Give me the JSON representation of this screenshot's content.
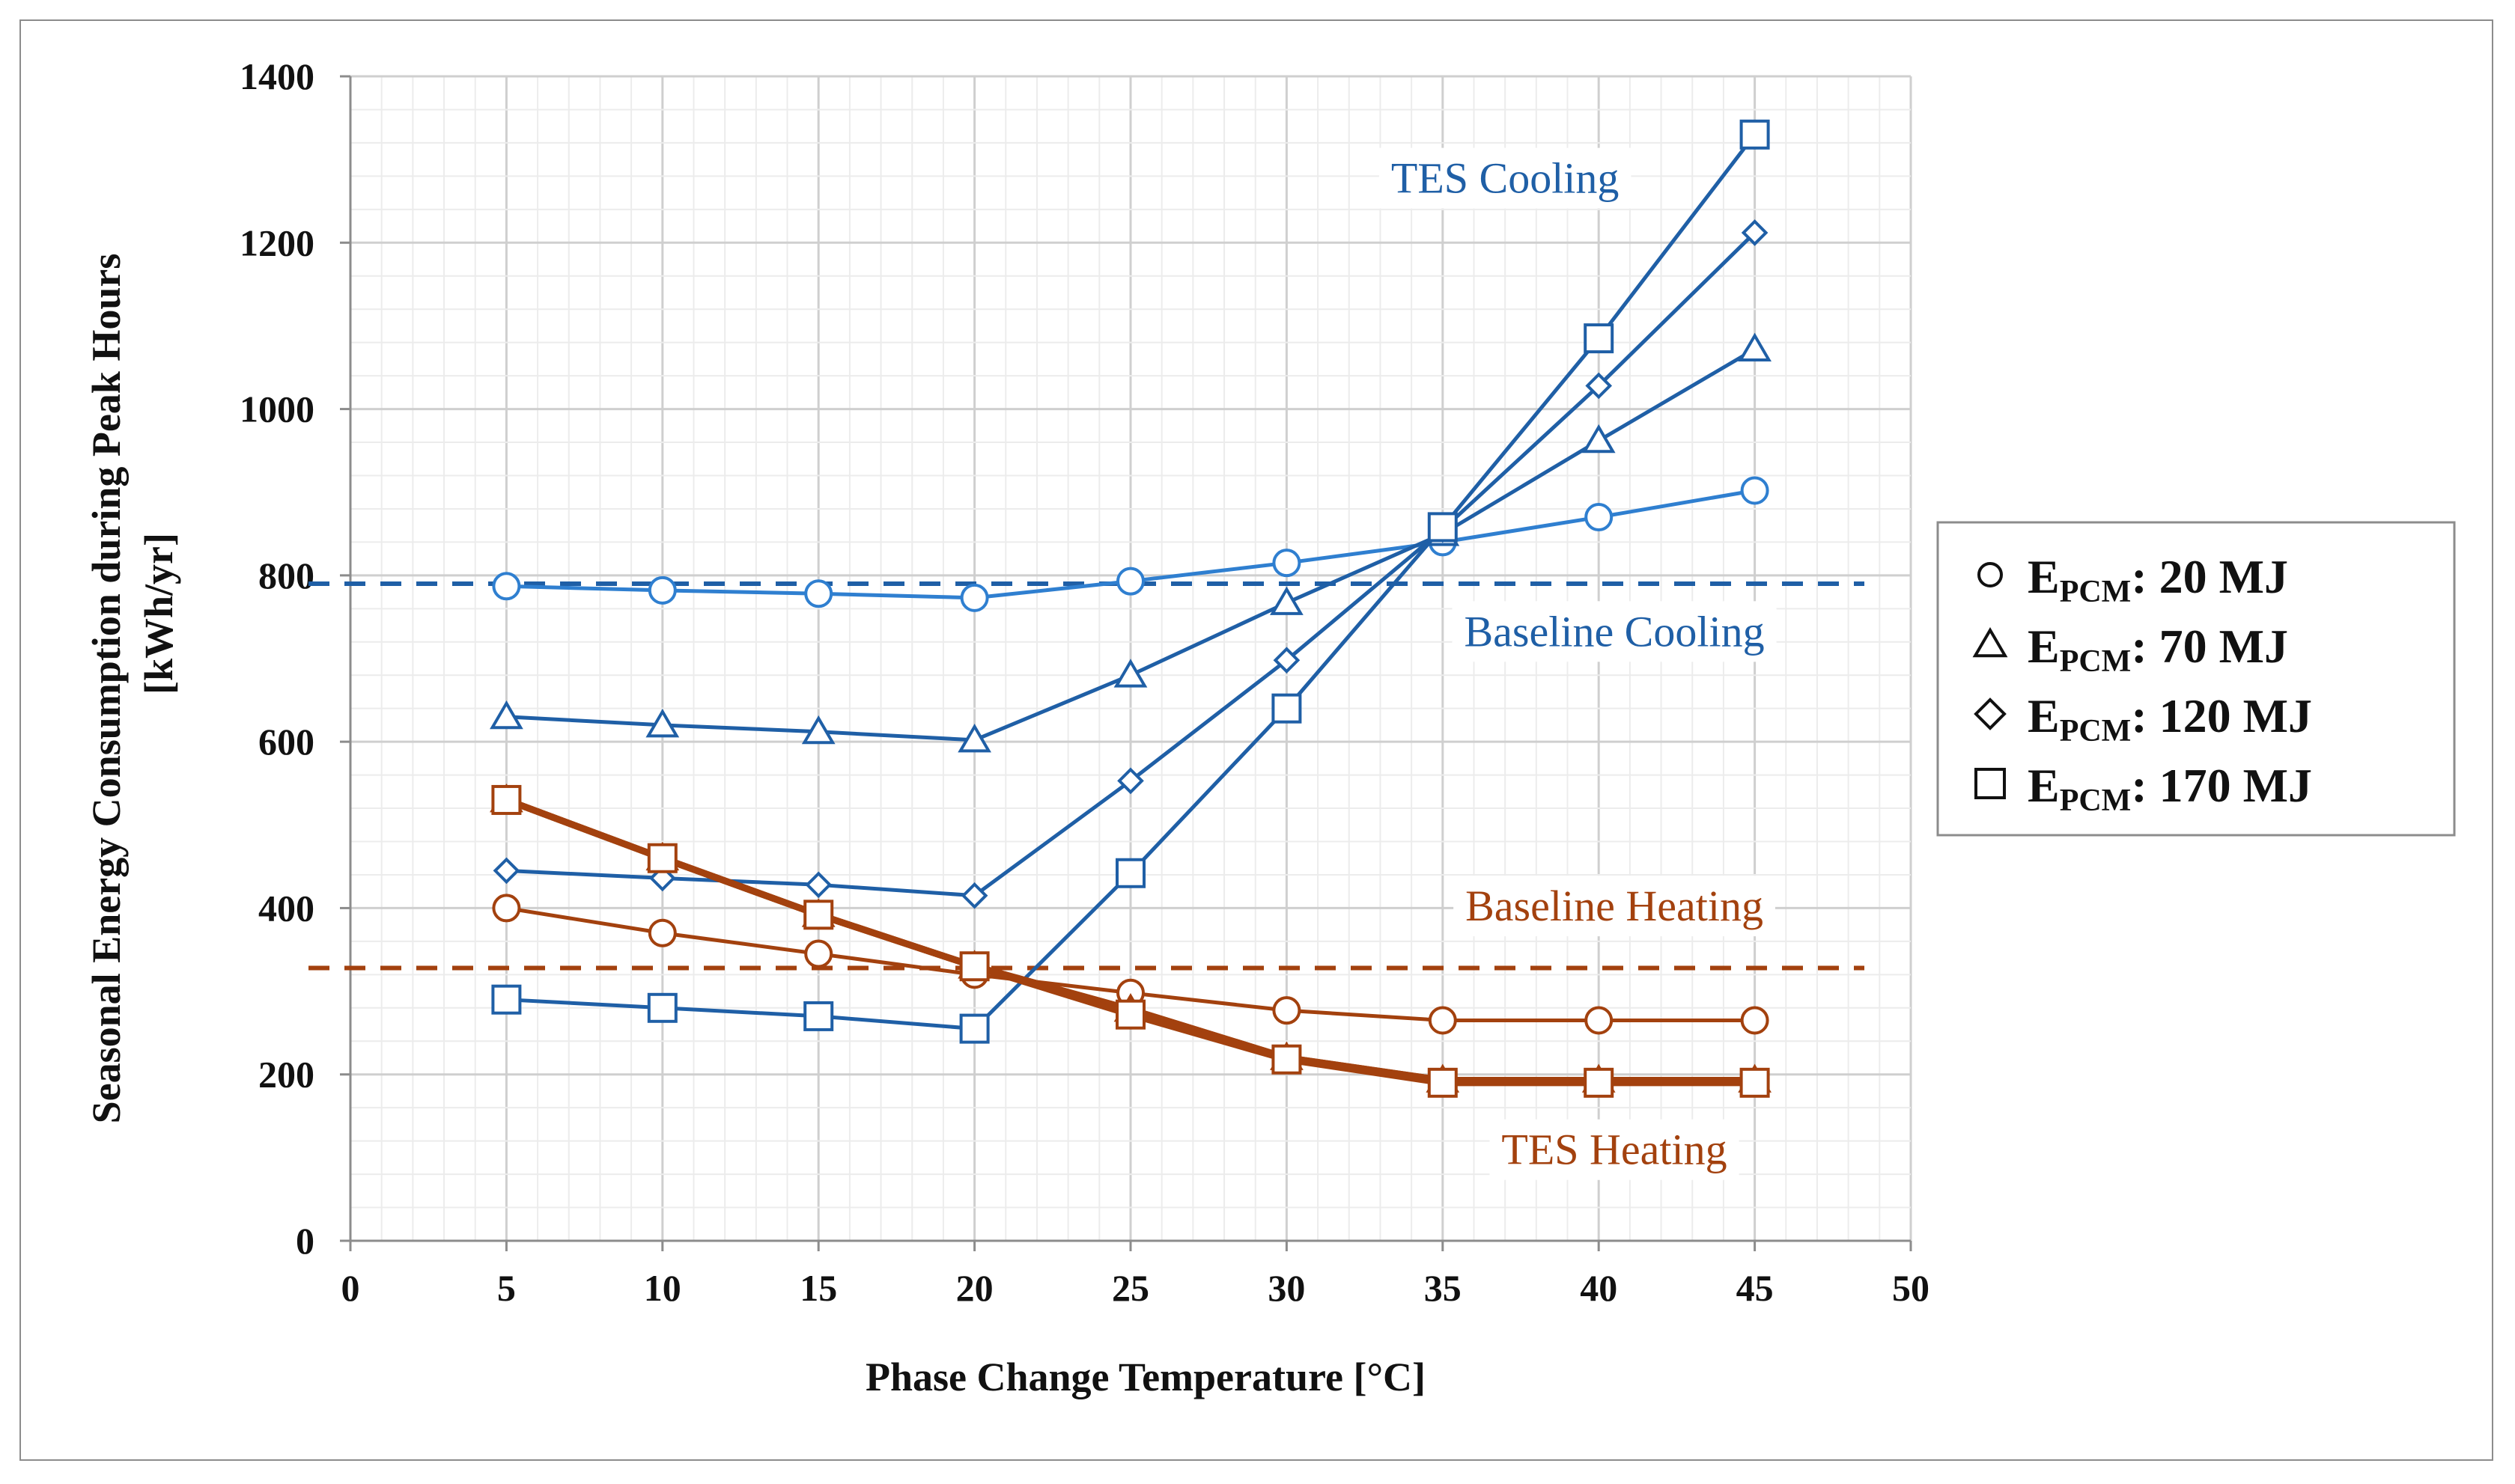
{
  "chart_data": {
    "type": "line",
    "title": "",
    "xlabel": "Phase Change Temperature [°C]",
    "ylabel_line1": "Seasonal Energy Consumption during Peak Hours",
    "ylabel_line2": "[kWh/yr]",
    "xlim": [
      0,
      50
    ],
    "ylim": [
      0,
      1400
    ],
    "x_ticks": [
      "0",
      "5",
      "10",
      "15",
      "20",
      "25",
      "30",
      "35",
      "40",
      "45",
      "50"
    ],
    "y_ticks": [
      "0",
      "200",
      "400",
      "600",
      "800",
      "1000",
      "1200",
      "1400"
    ],
    "grid": true,
    "x": [
      5,
      10,
      15,
      20,
      25,
      30,
      35,
      40,
      45
    ],
    "series": [
      {
        "name": "Cooling E_PCM 20 MJ",
        "group": "cooling",
        "marker": "circle",
        "values": [
          787,
          782,
          778,
          773,
          793,
          815,
          840,
          870,
          902
        ]
      },
      {
        "name": "Cooling E_PCM 70 MJ",
        "group": "cooling",
        "marker": "triangle",
        "values": [
          630,
          620,
          612,
          602,
          680,
          767,
          850,
          962,
          1072
        ]
      },
      {
        "name": "Cooling E_PCM 120 MJ",
        "group": "cooling",
        "marker": "diamond",
        "values": [
          445,
          436,
          428,
          415,
          553,
          698,
          855,
          1028,
          1212
        ]
      },
      {
        "name": "Cooling E_PCM 170 MJ",
        "group": "cooling",
        "marker": "square",
        "values": [
          290,
          280,
          270,
          255,
          442,
          640,
          858,
          1085,
          1330
        ]
      },
      {
        "name": "Heating E_PCM 20 MJ",
        "group": "heating",
        "marker": "circle",
        "values": [
          400,
          370,
          345,
          320,
          298,
          277,
          265,
          265,
          265
        ]
      },
      {
        "name": "Heating E_PCM 70 MJ",
        "group": "heating",
        "marker": "triangle",
        "values": [
          530,
          460,
          392,
          330,
          278,
          220,
          193,
          193,
          193
        ]
      },
      {
        "name": "Heating E_PCM 120 MJ",
        "group": "heating",
        "marker": "diamond",
        "values": [
          530,
          460,
          392,
          330,
          278,
          220,
          193,
          193,
          193
        ]
      },
      {
        "name": "Heating E_PCM 170 MJ",
        "group": "heating",
        "marker": "square",
        "values": [
          530,
          460,
          392,
          330,
          272,
          218,
          190,
          190,
          190
        ]
      }
    ],
    "baselines": [
      {
        "name": "Baseline Cooling",
        "group": "cooling",
        "value": 790
      },
      {
        "name": "Baseline Heating",
        "group": "heating",
        "value": 328
      }
    ],
    "annotations": [
      {
        "text": "TES Cooling",
        "group": "cooling",
        "x": 37,
        "y": 1260
      },
      {
        "text": "Baseline Cooling",
        "group": "cooling",
        "x": 40.5,
        "y": 715
      },
      {
        "text": "Baseline Heating",
        "group": "heating",
        "x": 40.5,
        "y": 385
      },
      {
        "text": "TES Heating",
        "group": "heating",
        "x": 40.5,
        "y": 92
      }
    ],
    "legend": {
      "position": "right",
      "entries": [
        {
          "marker": "circle",
          "prefix": "E",
          "subscript": "PCM",
          "suffix": ": 20 MJ"
        },
        {
          "marker": "triangle",
          "prefix": "E",
          "subscript": "PCM",
          "suffix": ": 70 MJ"
        },
        {
          "marker": "diamond",
          "prefix": "E",
          "subscript": "PCM",
          "suffix": ": 120 MJ"
        },
        {
          "marker": "square",
          "prefix": "E",
          "subscript": "PCM",
          "suffix": ": 170 MJ"
        }
      ]
    },
    "colors": {
      "cooling": "#1f5fa6",
      "cooling_light": "#2f7fd0",
      "heating": "#a3410e",
      "grid": "#d9d9d9",
      "axis": "#8c8c8c"
    }
  }
}
